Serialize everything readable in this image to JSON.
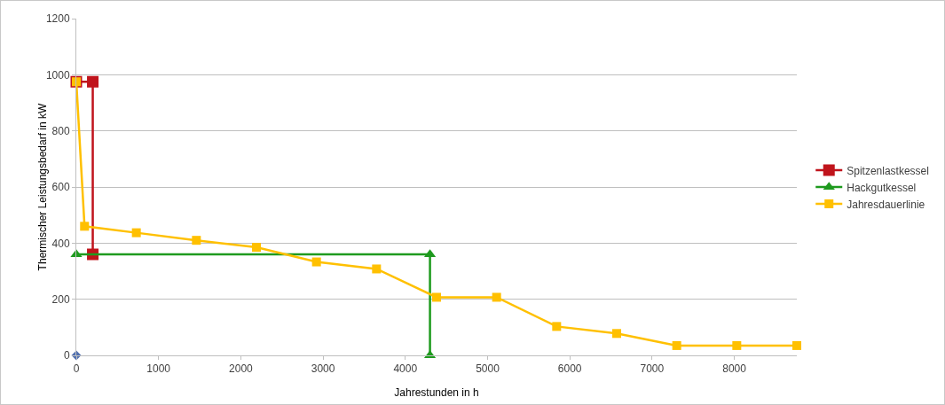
{
  "chart_data": {
    "type": "line",
    "xlabel": "Jahrestunden in h",
    "ylabel": "Thermischer Leistungsbedarf in kW",
    "xlim": [
      0,
      8760
    ],
    "xticks": [
      0,
      1000,
      2000,
      3000,
      4000,
      5000,
      6000,
      7000,
      8000
    ],
    "ylim": [
      0,
      1200
    ],
    "yticks": [
      0,
      200,
      400,
      600,
      800,
      1000,
      1200
    ],
    "grid": "y",
    "legend": "right",
    "series": [
      {
        "name": "Spitzenlastkessel",
        "color": "#c0141c",
        "marker": "square",
        "x": [
          0,
          200,
          200
        ],
        "values": [
          975,
          975,
          360
        ]
      },
      {
        "name": "Hackgutkessel",
        "color": "#1e9a1e",
        "marker": "triangle",
        "x": [
          0,
          4300,
          4300
        ],
        "values": [
          360,
          360,
          0
        ]
      },
      {
        "name": "Jahresdauerlinie",
        "color": "#ffc000",
        "marker": "square",
        "x": [
          0,
          100,
          730,
          1460,
          2190,
          2920,
          3650,
          4380,
          5110,
          5840,
          6570,
          7300,
          8030,
          8760
        ],
        "values": [
          975,
          460,
          437,
          410,
          385,
          333,
          308,
          207,
          207,
          103,
          78,
          35,
          35,
          35
        ]
      },
      {
        "type": "scatter",
        "color": "#4f6fb0",
        "marker": "diamond",
        "x": [
          0
        ],
        "values": [
          0
        ]
      }
    ]
  }
}
